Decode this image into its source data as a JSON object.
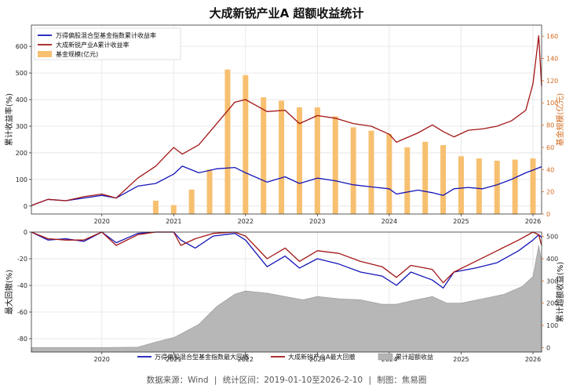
{
  "title": "大成新锐产业A 超额收益统计",
  "footer": {
    "source": "数据来源：Wind",
    "sep1": "|",
    "range": "统计区间：2019-01-10至2026-2-10",
    "sep2": "|",
    "maker": "制图：焦易圈"
  },
  "colors": {
    "index_line": "#1515b8",
    "fund_line": "#a31616",
    "scale_bar": "#f7c070",
    "excess_area": "#b4b4b4",
    "right_axis": "#d2691e"
  },
  "chart_data": [
    {
      "type": "line",
      "title": "",
      "xlabel": "",
      "ylabel": "累计收益率(%)",
      "ylabel_right": "基金规模(亿元)",
      "xlim": [
        2019.02,
        2026.12
      ],
      "ylim": [
        -30,
        680
      ],
      "ylim_right": [
        0,
        170
      ],
      "yticks": [
        0,
        100,
        200,
        300,
        400,
        500,
        600
      ],
      "yticks_right": [
        0,
        20,
        40,
        60,
        80,
        100,
        120,
        140,
        160
      ],
      "x_ticks": [
        "2020",
        "2021",
        "2022",
        "2023",
        "2024",
        "2025",
        "2026"
      ],
      "grid": true,
      "legend_position": "top-left",
      "series": [
        {
          "name": "万得偏股混合型基金指数累计收益率",
          "axis": "left",
          "x": [
            2019.02,
            2019.25,
            2019.5,
            2019.75,
            2020.0,
            2020.2,
            2020.5,
            2020.75,
            2021.0,
            2021.12,
            2021.35,
            2021.6,
            2021.85,
            2022.0,
            2022.3,
            2022.55,
            2022.75,
            2023.0,
            2023.25,
            2023.5,
            2023.75,
            2024.0,
            2024.1,
            2024.4,
            2024.6,
            2024.75,
            2024.9,
            2025.1,
            2025.3,
            2025.5,
            2025.7,
            2025.9,
            2026.0,
            2026.12
          ],
          "y": [
            2,
            25,
            20,
            30,
            40,
            30,
            75,
            85,
            120,
            150,
            125,
            140,
            145,
            125,
            90,
            110,
            85,
            105,
            95,
            80,
            72,
            65,
            45,
            60,
            50,
            40,
            65,
            70,
            65,
            80,
            100,
            125,
            135,
            148
          ]
        },
        {
          "name": "大成新锐产业A累计收益率",
          "axis": "left",
          "x": [
            2019.02,
            2019.25,
            2019.5,
            2019.75,
            2020.0,
            2020.2,
            2020.5,
            2020.75,
            2021.0,
            2021.12,
            2021.35,
            2021.6,
            2021.85,
            2022.0,
            2022.3,
            2022.55,
            2022.75,
            2023.0,
            2023.25,
            2023.5,
            2023.75,
            2024.0,
            2024.1,
            2024.4,
            2024.6,
            2024.75,
            2024.9,
            2025.1,
            2025.3,
            2025.5,
            2025.7,
            2025.9,
            2026.0,
            2026.08,
            2026.12
          ],
          "y": [
            2,
            25,
            20,
            35,
            45,
            30,
            105,
            150,
            220,
            195,
            230,
            310,
            390,
            400,
            355,
            360,
            310,
            340,
            330,
            310,
            300,
            270,
            240,
            275,
            305,
            280,
            260,
            285,
            290,
            300,
            320,
            360,
            460,
            640,
            450
          ]
        },
        {
          "name": "基金规模(亿元)",
          "type": "bar",
          "axis": "right",
          "x": [
            2020.75,
            2021.0,
            2021.25,
            2021.5,
            2021.75,
            2022.0,
            2022.25,
            2022.5,
            2022.75,
            2023.0,
            2023.25,
            2023.5,
            2023.75,
            2024.0,
            2024.25,
            2024.5,
            2024.75,
            2025.0,
            2025.25,
            2025.5,
            2025.75,
            2026.0
          ],
          "values": [
            12,
            8,
            22,
            40,
            130,
            125,
            105,
            102,
            96,
            96,
            88,
            78,
            75,
            72,
            60,
            65,
            62,
            52,
            50,
            48,
            49,
            50
          ]
        }
      ]
    },
    {
      "type": "line",
      "title": "",
      "xlabel": "",
      "ylabel": "最大回撤(%)",
      "ylabel_right": "累计超额收益(%)",
      "xlim": [
        2019.02,
        2026.12
      ],
      "ylim": [
        -90,
        0
      ],
      "ylim_right": [
        -20,
        520
      ],
      "yticks": [
        -80,
        -60,
        -40,
        -20,
        0
      ],
      "yticks_right": [
        0,
        100,
        200,
        300,
        400,
        500
      ],
      "x_ticks": [
        "2020",
        "2021",
        "2022",
        "2023",
        "2024",
        "2025",
        "2026"
      ],
      "grid": true,
      "legend_position": "bottom",
      "series": [
        {
          "name": "万得偏股混合型基金指数最大回撤",
          "axis": "left",
          "x": [
            2019.02,
            2019.25,
            2019.5,
            2019.75,
            2020.0,
            2020.2,
            2020.5,
            2020.75,
            2021.0,
            2021.1,
            2021.3,
            2021.55,
            2021.85,
            2022.0,
            2022.3,
            2022.55,
            2022.75,
            2023.0,
            2023.3,
            2023.6,
            2023.9,
            2024.1,
            2024.3,
            2024.6,
            2024.75,
            2024.9,
            2025.2,
            2025.5,
            2025.8,
            2026.0,
            2026.08,
            2026.12
          ],
          "y": [
            0,
            -6,
            -5,
            -7,
            0,
            -8,
            -1,
            0,
            0,
            -6,
            -12,
            -3,
            -1,
            -6,
            -26,
            -18,
            -27,
            -20,
            -24,
            -30,
            -33,
            -40,
            -30,
            -36,
            -42,
            -30,
            -27,
            -23,
            -14,
            -6,
            -2,
            -4
          ]
        },
        {
          "name": "大成新锐产业A最大回撤",
          "axis": "left",
          "x": [
            2019.02,
            2019.25,
            2019.5,
            2019.75,
            2020.0,
            2020.2,
            2020.5,
            2020.75,
            2021.0,
            2021.1,
            2021.3,
            2021.55,
            2021.85,
            2022.0,
            2022.3,
            2022.55,
            2022.75,
            2023.0,
            2023.3,
            2023.6,
            2023.9,
            2024.1,
            2024.3,
            2024.6,
            2024.75,
            2024.9,
            2025.2,
            2025.5,
            2025.8,
            2026.0,
            2026.08,
            2026.12
          ],
          "y": [
            0,
            -5,
            -6,
            -6,
            0,
            -10,
            -2,
            0,
            0,
            -10,
            -5,
            -1,
            0,
            -3,
            -20,
            -12,
            -22,
            -14,
            -16,
            -22,
            -26,
            -34,
            -25,
            -28,
            -38,
            -30,
            -22,
            -14,
            -6,
            0,
            -2,
            -10
          ]
        },
        {
          "name": "累计超额收益",
          "type": "area",
          "axis": "right",
          "x": [
            2019.02,
            2019.5,
            2020.0,
            2020.5,
            2020.75,
            2021.0,
            2021.15,
            2021.35,
            2021.6,
            2021.85,
            2022.0,
            2022.3,
            2022.55,
            2022.8,
            2023.0,
            2023.3,
            2023.6,
            2023.9,
            2024.1,
            2024.3,
            2024.6,
            2024.8,
            2025.0,
            2025.3,
            2025.6,
            2025.85,
            2026.0,
            2026.08,
            2026.12
          ],
          "y": [
            0,
            0,
            0,
            2,
            25,
            45,
            70,
            105,
            185,
            240,
            255,
            245,
            230,
            215,
            230,
            220,
            215,
            195,
            195,
            210,
            230,
            200,
            200,
            220,
            240,
            275,
            320,
            460,
            390
          ]
        }
      ]
    }
  ]
}
